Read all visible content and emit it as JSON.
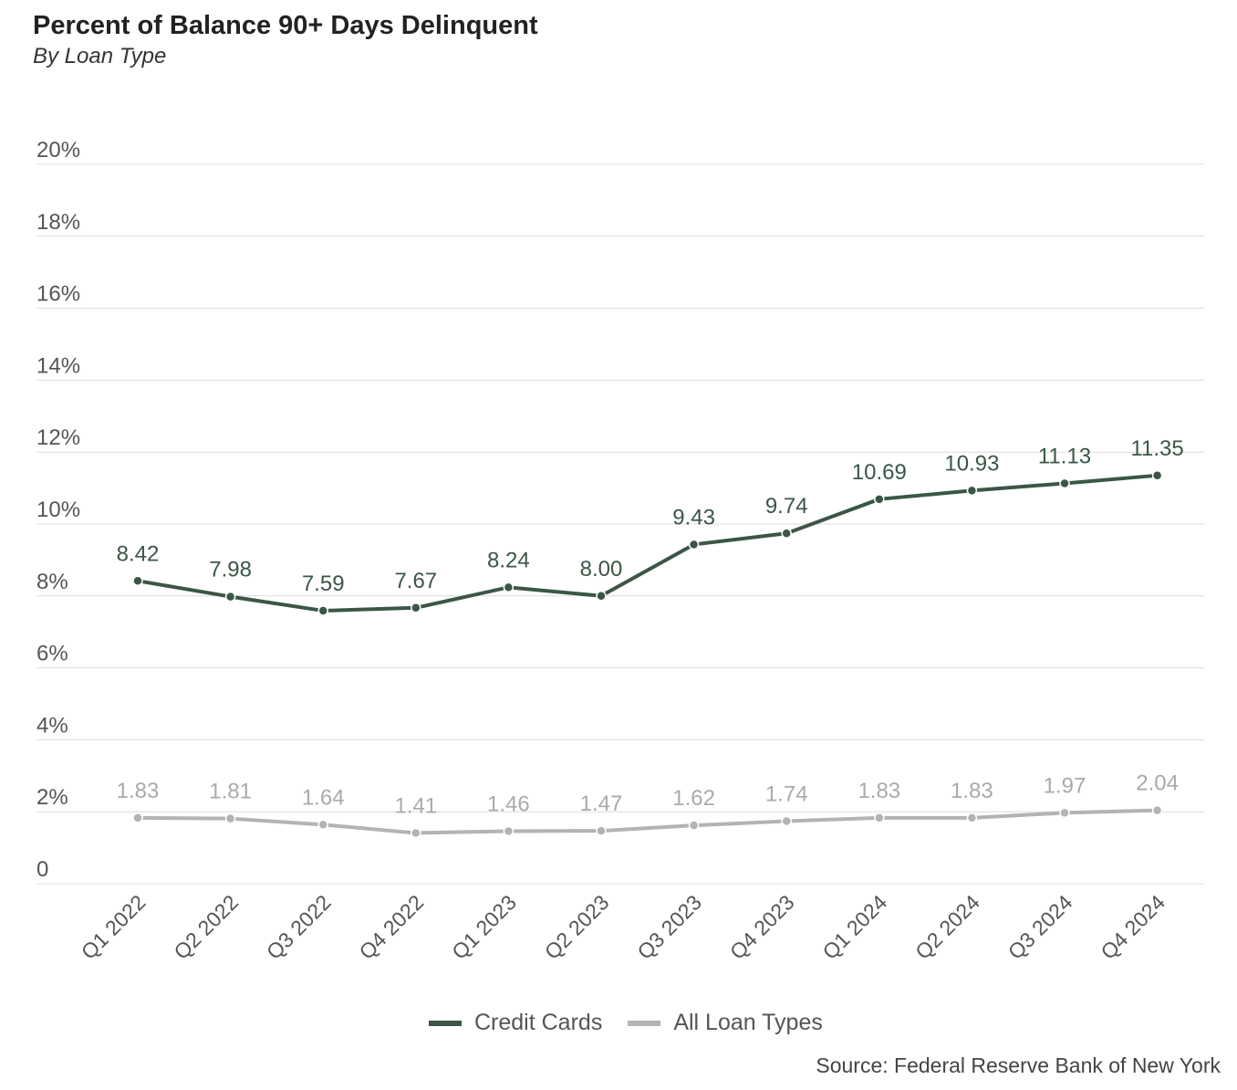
{
  "chart_data": {
    "type": "line",
    "title": "Percent of Balance 90+ Days Delinquent",
    "subtitle": "By Loan Type",
    "categories": [
      "Q1 2022",
      "Q2 2022",
      "Q3 2022",
      "Q4 2022",
      "Q1 2023",
      "Q2 2023",
      "Q3 2023",
      "Q4 2023",
      "Q1 2024",
      "Q2 2024",
      "Q3 2024",
      "Q4 2024"
    ],
    "series": [
      {
        "name": "Credit Cards",
        "color": "#3b5646",
        "values": [
          8.42,
          7.98,
          7.59,
          7.67,
          8.24,
          8.0,
          9.43,
          9.74,
          10.69,
          10.93,
          11.13,
          11.35
        ],
        "labels": [
          "8.42",
          "7.98",
          "7.59",
          "7.67",
          "8.24",
          "8.00",
          "9.43",
          "9.74",
          "10.69",
          "10.93",
          "11.13",
          "11.35"
        ]
      },
      {
        "name": "All Loan Types",
        "color": "#b3b3b3",
        "values": [
          1.83,
          1.81,
          1.64,
          1.41,
          1.46,
          1.47,
          1.62,
          1.74,
          1.83,
          1.83,
          1.97,
          2.04
        ],
        "labels": [
          "1.83",
          "1.81",
          "1.64",
          "1.41",
          "1.46",
          "1.47",
          "1.62",
          "1.74",
          "1.83",
          "1.83",
          "1.97",
          "2.04"
        ]
      }
    ],
    "ylim": [
      0,
      20
    ],
    "yticks": [
      0,
      2,
      4,
      6,
      8,
      10,
      12,
      14,
      16,
      18,
      20
    ],
    "ytick_labels": [
      "0",
      "2%",
      "4%",
      "6%",
      "8%",
      "10%",
      "12%",
      "14%",
      "16%",
      "18%",
      "20%"
    ],
    "grid": true,
    "legend": "bottom-center",
    "source": "Source: Federal Reserve Bank of New York"
  }
}
